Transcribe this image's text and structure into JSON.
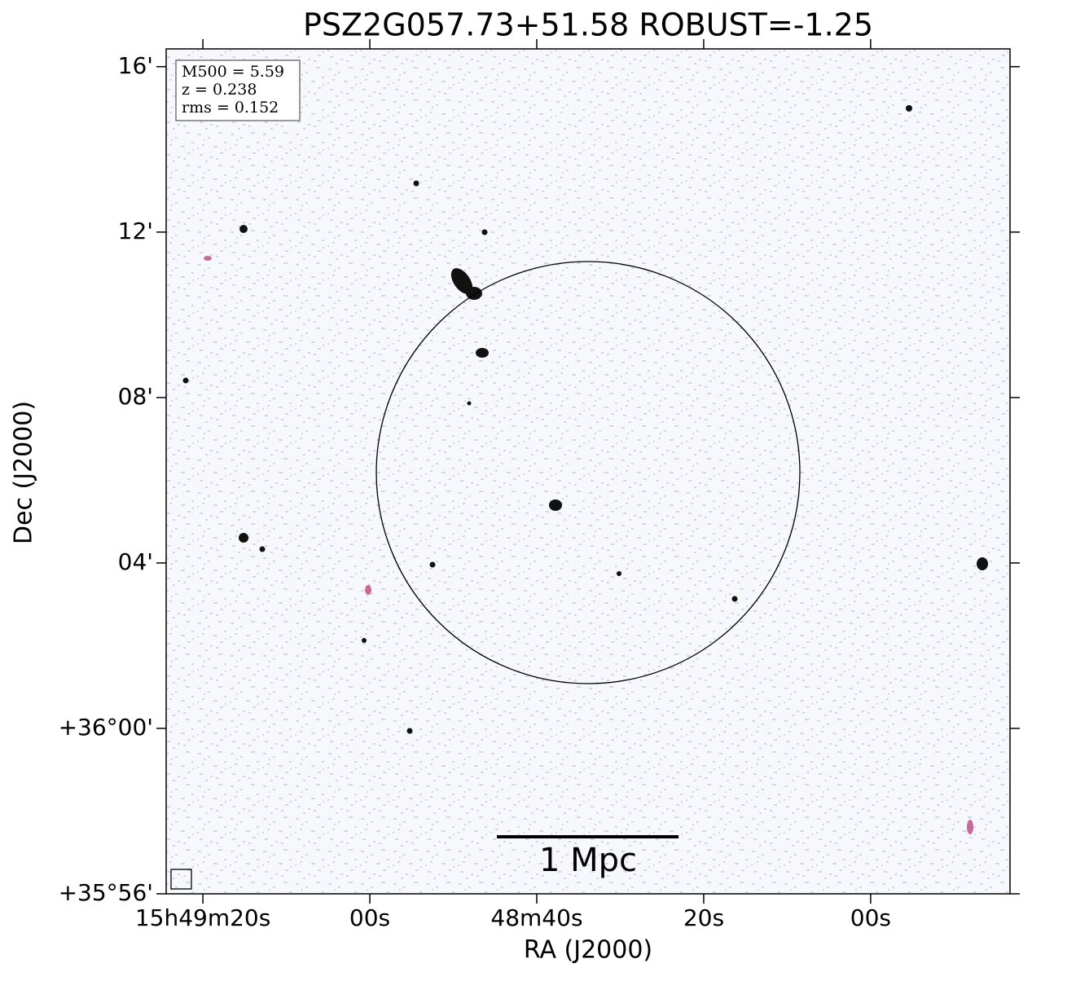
{
  "chart_data": {
    "type": "image",
    "title": "PSZ2G057.73+51.58 ROBUST=-1.25",
    "xlabel": "RA (J2000)",
    "ylabel": "Dec (J2000)",
    "xlim": [
      84.4,
      -16.7
    ],
    "xticks": [
      {
        "value": 80,
        "label": "15h49m20s"
      },
      {
        "value": 60,
        "label": "00s"
      },
      {
        "value": 40,
        "label": "48m40s"
      },
      {
        "value": 20,
        "label": "20s"
      },
      {
        "value": 0,
        "label": "00s"
      }
    ],
    "ylim": [
      -4,
      16.43
    ],
    "yticks": [
      {
        "value": 16,
        "label": "16'"
      },
      {
        "value": 12,
        "label": "12'"
      },
      {
        "value": 8,
        "label": "08'"
      },
      {
        "value": 4,
        "label": "04'"
      },
      {
        "value": 0,
        "label": "+36°00'"
      },
      {
        "value": -4,
        "label": "+35°56'"
      }
    ],
    "info": [
      "M500 = 5.59",
      "z = 0.238",
      "rms = 0.152"
    ],
    "scalebar_label": "1 Mpc"
  }
}
